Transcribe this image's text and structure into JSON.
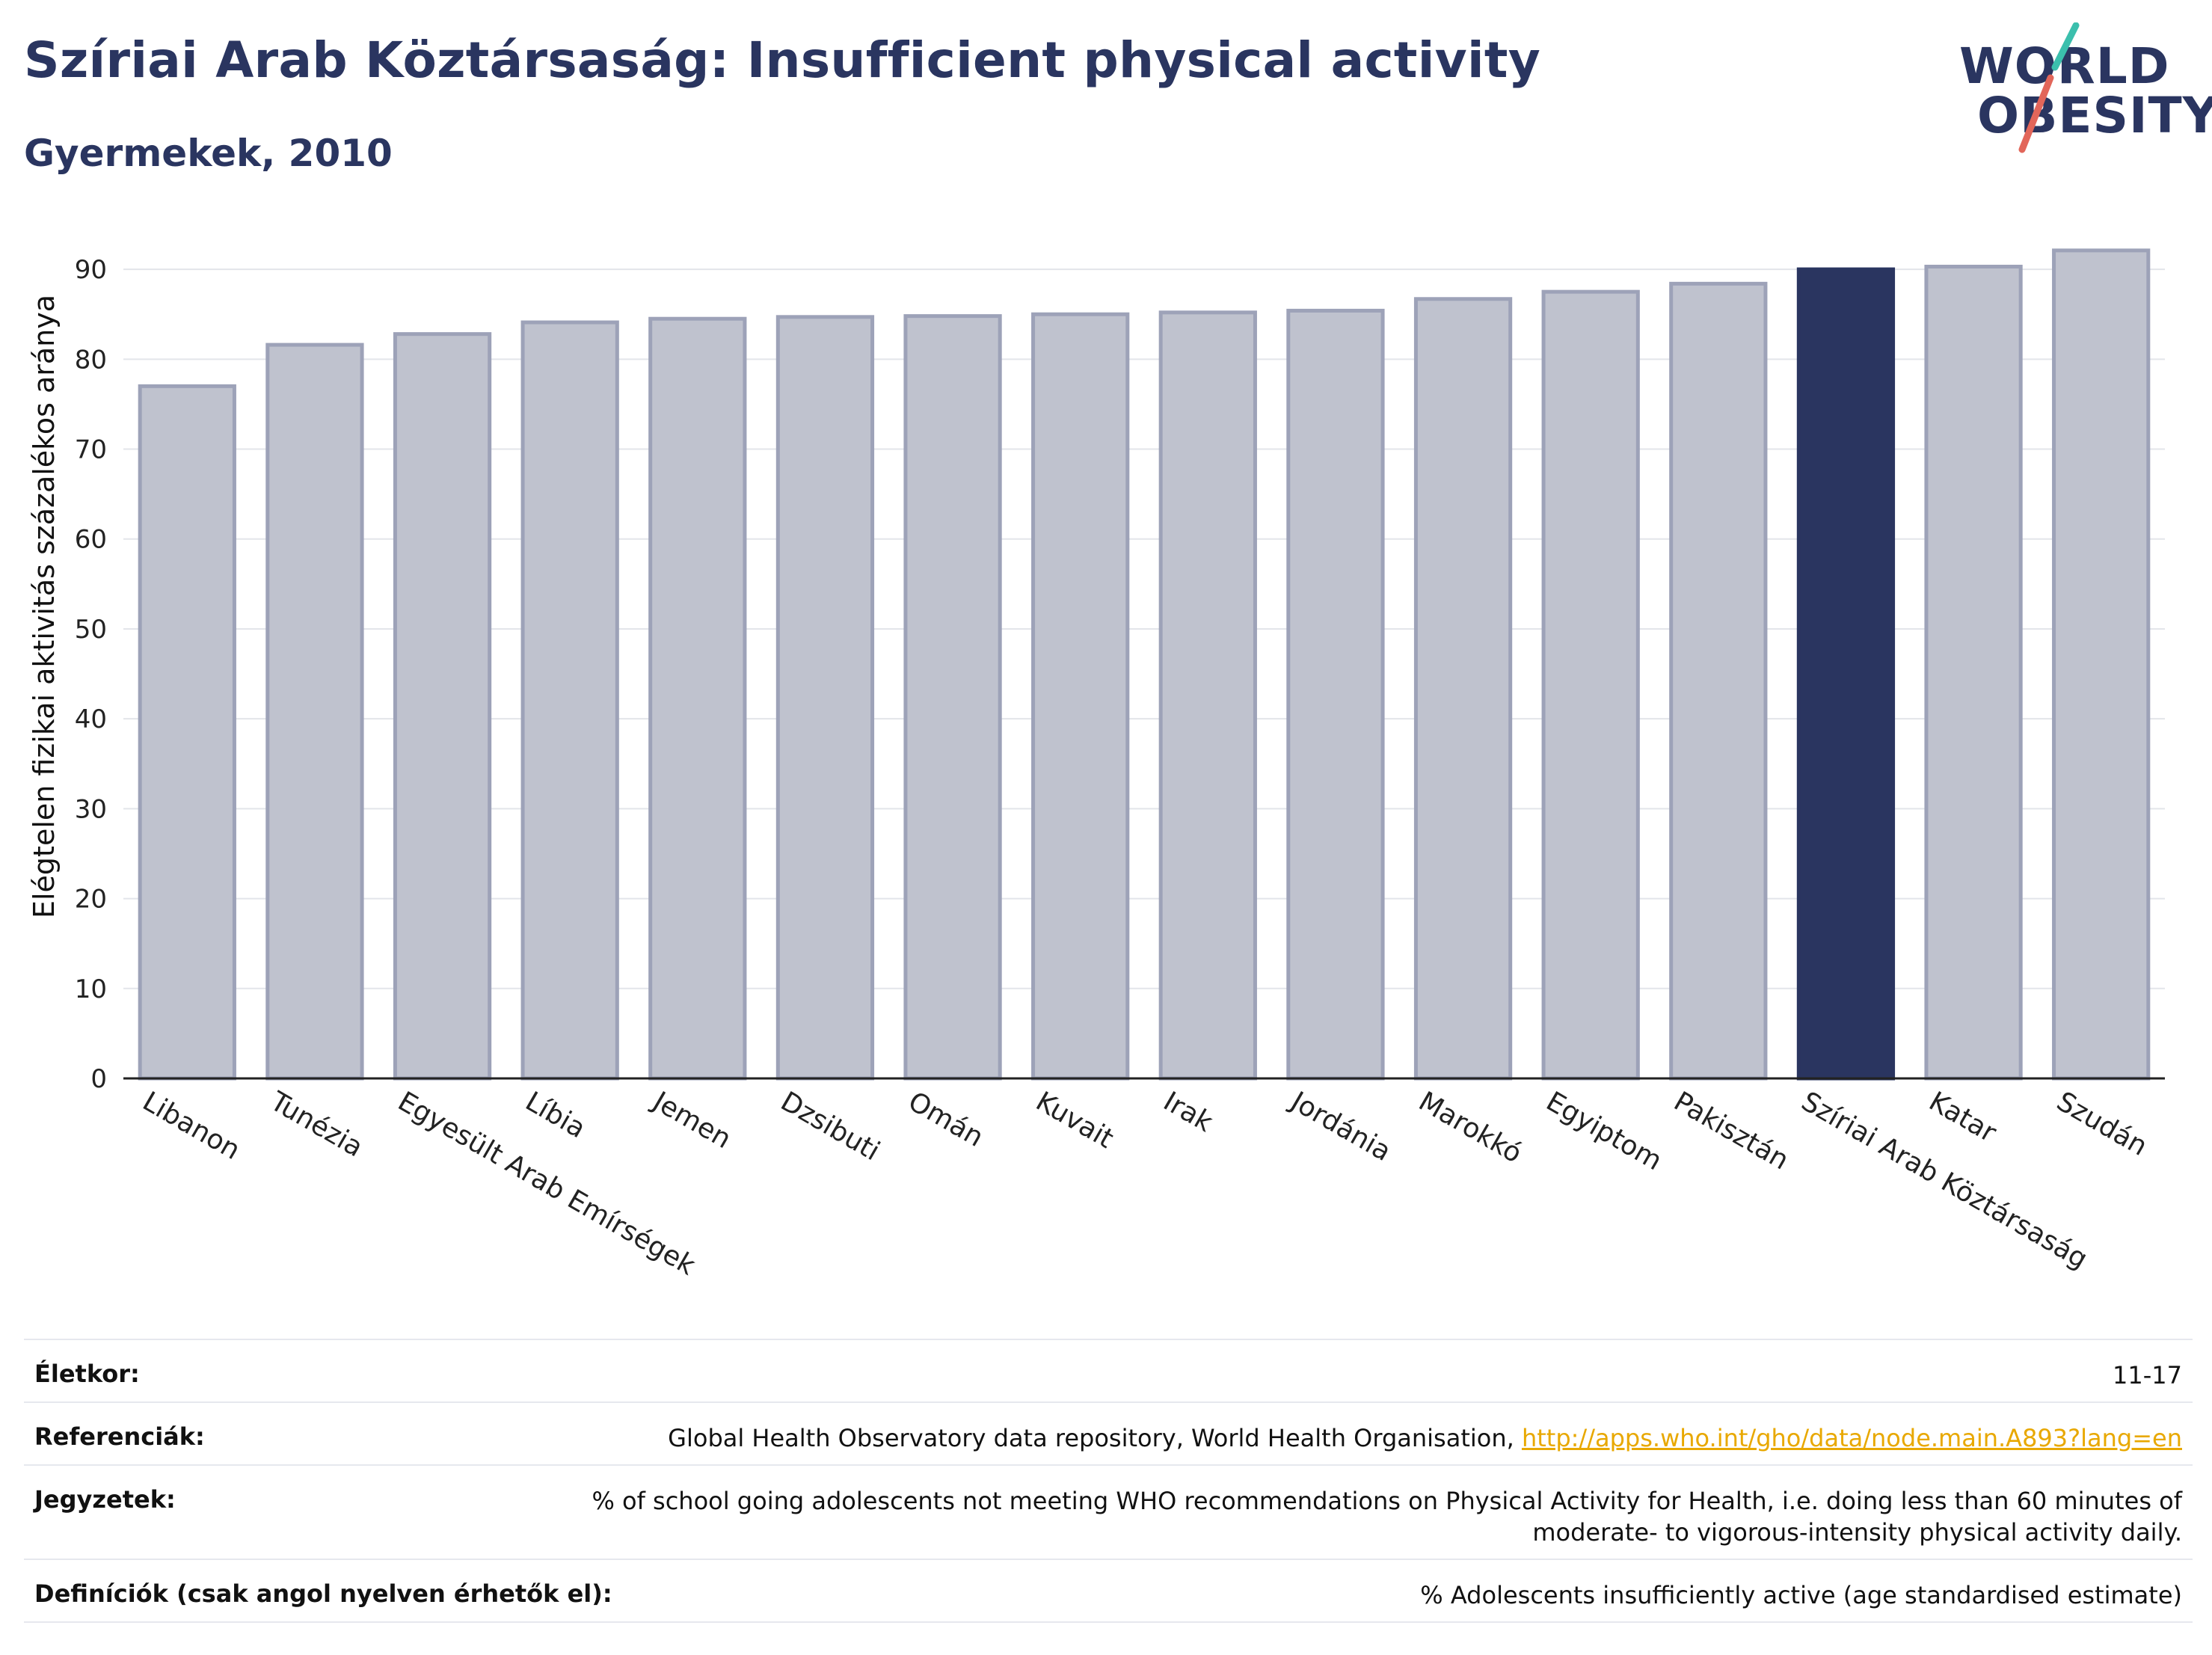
{
  "header": {
    "title": "Szíriai Arab Köztársaság: Insufficient physical activity",
    "subtitle": "Gyermekek, 2010"
  },
  "logo": {
    "line1": "WORLD",
    "line2": "OBESITY",
    "accent_teal": "#3bbfad",
    "accent_red": "#e2665a"
  },
  "colors": {
    "bar": "#bfc2ce",
    "bar_border": "#9da2b8",
    "highlight": "#2a3560",
    "grid": "#e3e5ea"
  },
  "chart_data": {
    "type": "bar",
    "categories": [
      "Libanon",
      "Tunézia",
      "Egyesült Arab Emírségek",
      "Líbia",
      "Jemen",
      "Dzsibuti",
      "Omán",
      "Kuvait",
      "Irak",
      "Jordánia",
      "Marokkó",
      "Egyiptom",
      "Pakisztán",
      "Szíriai Arab Köztársaság",
      "Katar",
      "Szudán"
    ],
    "values": [
      77.0,
      81.6,
      82.8,
      84.1,
      84.5,
      84.7,
      84.8,
      85.0,
      85.2,
      85.4,
      86.7,
      87.5,
      88.4,
      90.0,
      90.3,
      92.1
    ],
    "highlight_index": 13,
    "ylabel": "Elégtelen fizikai aktivitás százalékos aránya",
    "yticks": [
      0,
      10,
      20,
      30,
      40,
      50,
      60,
      70,
      80,
      90
    ],
    "ylim": [
      0,
      95
    ],
    "grid": true
  },
  "footer": {
    "rows": [
      {
        "label": "Életkor:",
        "value": "11-17"
      },
      {
        "label": "Referenciák:",
        "value": "Global Health Observatory data repository, World Health Organisation, ",
        "link": "http://apps.who.int/gho/data/node.main.A893?lang=en"
      },
      {
        "label": "Jegyzetek:",
        "value": "% of school going adolescents not meeting WHO recommendations on Physical Activity for Health, i.e. doing less than 60 minutes of moderate- to vigorous-intensity physical activity daily."
      },
      {
        "label": "Definíciók (csak angol nyelven érhetők el):",
        "value": "% Adolescents insufficiently active (age standardised estimate)"
      }
    ]
  }
}
